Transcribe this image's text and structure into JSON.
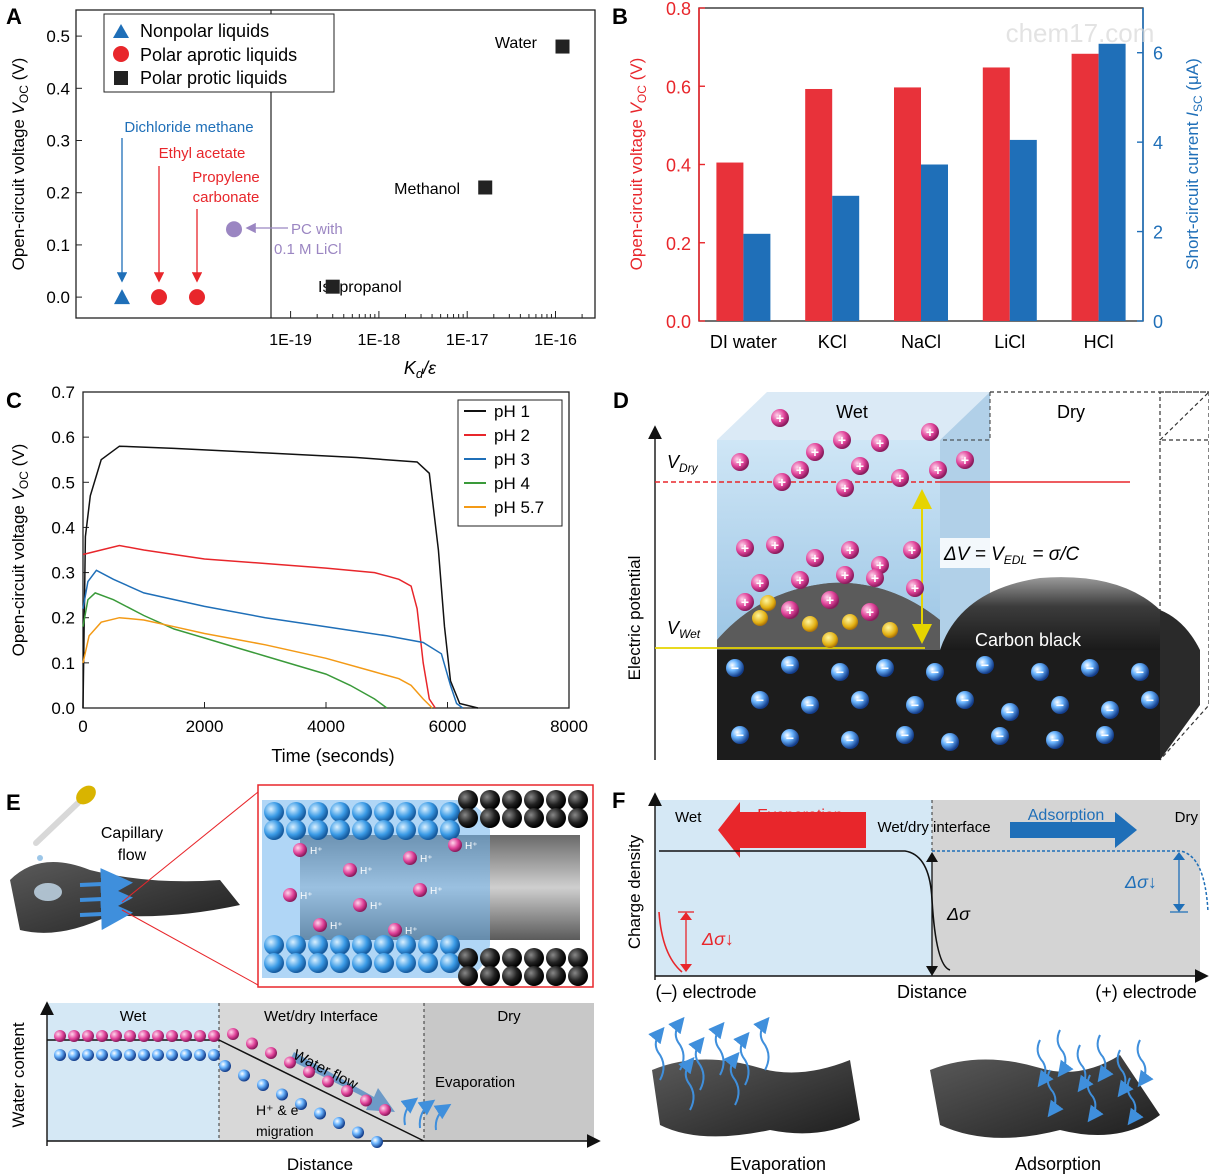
{
  "watermark": "chem17.com",
  "panels": {
    "A": {
      "label": "A",
      "ylabel": "Open-circuit voltage V_OC (V)",
      "ylabel_main": "Open-circuit voltage ",
      "ylabel_v": "V",
      "ylabel_sub": "OC",
      "ylabel_unit": " (V)",
      "xlabel_k": "K",
      "xlabel_sub": "d",
      "xlabel_rest": "/ε",
      "yticks": [
        "0.0",
        "0.1",
        "0.2",
        "0.3",
        "0.4",
        "0.5"
      ],
      "xticks": [
        "1E-19",
        "1E-18",
        "1E-17",
        "1E-16"
      ],
      "legend": [
        "Nonpolar liquids",
        "Polar aprotic liquids",
        "Polar protic liquids"
      ],
      "annotations": {
        "dcm": "Dichloride methane",
        "ea": "Ethyl acetate",
        "pc1": "Propylene",
        "pc2": "carbonate",
        "pcl1": "PC with",
        "pcl2": "0.1 M LiCl",
        "water": "Water",
        "methanol": "Methanol",
        "isopropanol": "Isopropanol"
      }
    },
    "B": {
      "label": "B",
      "ylabel_left_main": "Open-circuit voltage ",
      "ylabel_left_v": "V",
      "ylabel_left_sub": "OC",
      "ylabel_left_unit": " (V)",
      "ylabel_right_main": "Short-circuit current ",
      "ylabel_right_i": "I",
      "ylabel_right_sub": "SC",
      "ylabel_right_unit": " (μA)",
      "yticks_left": [
        "0.0",
        "0.2",
        "0.4",
        "0.6",
        "0.8"
      ],
      "yticks_right": [
        "0",
        "2",
        "4",
        "6"
      ]
    },
    "C": {
      "label": "C",
      "ylabel_main": "Open-circuit voltage ",
      "ylabel_v": "V",
      "ylabel_sub": "OC",
      "ylabel_unit": " (V)",
      "xlabel": "Time (seconds)",
      "yticks": [
        "0.0",
        "0.1",
        "0.2",
        "0.3",
        "0.4",
        "0.5",
        "0.6",
        "0.7"
      ],
      "xticks": [
        "0",
        "2000",
        "4000",
        "6000",
        "8000"
      ]
    },
    "D": {
      "label": "D",
      "wet": "Wet",
      "dry": "Dry",
      "vdry": "V",
      "vdry_sub": "Dry",
      "vwet": "V",
      "vwet_sub": "Wet",
      "ylabel": "Electric potential",
      "eq_a": "ΔV = V",
      "eq_sub": "EDL",
      "eq_b": " = σ/C",
      "carbon": "Carbon black"
    },
    "E": {
      "label": "E",
      "capillary1": "Capillary",
      "capillary2": "flow",
      "wet": "Wet",
      "interface": "Wet/dry Interface",
      "dry": "Dry",
      "ylabel": "Water content",
      "xlabel": "Distance",
      "waterflow": "Water flow",
      "evaporation": "Evaporation",
      "migration1": "H⁺ & e⁻",
      "migration2": "migration",
      "ion": "H⁺"
    },
    "F": {
      "label": "F",
      "wet": "Wet",
      "dry": "Dry",
      "evaporation": "Evaporation",
      "adsorption": "Adsorption",
      "interface": "Wet/dry interface",
      "ylabel": "Charge density",
      "dsigma": "Δσ",
      "dsigma_down": "Δσ↓",
      "neg_electrode": "(–) electrode",
      "distance": "Distance",
      "pos_electrode": "(+) electrode",
      "bottom_left": "Evaporation",
      "bottom_right": "Adsorption"
    }
  },
  "chart_data": [
    {
      "type": "scatter",
      "panel": "A",
      "xlabel": "Kd/ε",
      "ylabel": "Open-circuit voltage VOC (V)",
      "xscale": "log",
      "ylim": [
        -0.04,
        0.55
      ],
      "series": [
        {
          "name": "Nonpolar liquids",
          "color": "#1f6fb8",
          "marker": "triangle",
          "points": [
            {
              "label": "Dichloride methane",
              "y": 0.0
            }
          ]
        },
        {
          "name": "Polar aprotic liquids",
          "color": "#e8262b",
          "marker": "circle",
          "points": [
            {
              "label": "Ethyl acetate",
              "y": 0.0
            },
            {
              "label": "Propylene carbonate",
              "y": 0.0
            }
          ]
        },
        {
          "name": "PC with 0.1 M LiCl",
          "color": "#9b86c2",
          "marker": "circle",
          "points": [
            {
              "label": "PC with 0.1 M LiCl",
              "y": 0.13
            }
          ]
        },
        {
          "name": "Polar protic liquids",
          "color": "#222222",
          "marker": "square",
          "points": [
            {
              "label": "Isopropanol",
              "x": 3e-19,
              "y": 0.02
            },
            {
              "label": "Methanol",
              "x": 1.6e-17,
              "y": 0.21
            },
            {
              "label": "Water",
              "x": 1.2e-16,
              "y": 0.48
            }
          ]
        }
      ]
    },
    {
      "type": "bar",
      "panel": "B",
      "categories": [
        "DI water",
        "KCl",
        "NaCl",
        "LiCl",
        "HCl"
      ],
      "series": [
        {
          "name": "VOC (V)",
          "axis": "left",
          "color": "#e8323a",
          "values": [
            0.405,
            0.593,
            0.597,
            0.648,
            0.683
          ]
        },
        {
          "name": "ISC (μA)",
          "axis": "right",
          "color": "#1f6fb8",
          "values": [
            1.95,
            2.8,
            3.5,
            4.05,
            6.2
          ]
        }
      ],
      "ylim_left": [
        0,
        0.8
      ],
      "ylim_right": [
        0,
        7
      ]
    },
    {
      "type": "line",
      "panel": "C",
      "xlabel": "Time (seconds)",
      "ylabel": "Open-circuit voltage VOC (V)",
      "xlim": [
        0,
        8000
      ],
      "ylim": [
        0,
        0.7
      ],
      "series": [
        {
          "name": "pH 1",
          "color": "#111111",
          "points": [
            [
              0,
              0.0
            ],
            [
              40,
              0.38
            ],
            [
              120,
              0.47
            ],
            [
              300,
              0.55
            ],
            [
              600,
              0.58
            ],
            [
              1500,
              0.575
            ],
            [
              3000,
              0.565
            ],
            [
              4500,
              0.555
            ],
            [
              5500,
              0.545
            ],
            [
              5700,
              0.52
            ],
            [
              5850,
              0.35
            ],
            [
              5950,
              0.18
            ],
            [
              6050,
              0.06
            ],
            [
              6200,
              0.01
            ],
            [
              6500,
              0.0
            ]
          ]
        },
        {
          "name": "pH 2",
          "color": "#e8262b",
          "points": [
            [
              0,
              0.34
            ],
            [
              300,
              0.35
            ],
            [
              600,
              0.36
            ],
            [
              1000,
              0.35
            ],
            [
              1500,
              0.34
            ],
            [
              2000,
              0.33
            ],
            [
              3000,
              0.32
            ],
            [
              4000,
              0.31
            ],
            [
              4800,
              0.3
            ],
            [
              5200,
              0.285
            ],
            [
              5400,
              0.27
            ],
            [
              5500,
              0.22
            ],
            [
              5600,
              0.1
            ],
            [
              5700,
              0.02
            ],
            [
              5800,
              0.0
            ]
          ]
        },
        {
          "name": "pH 3",
          "color": "#1f6fb8",
          "points": [
            [
              0,
              0.22
            ],
            [
              80,
              0.28
            ],
            [
              220,
              0.305
            ],
            [
              500,
              0.285
            ],
            [
              1000,
              0.255
            ],
            [
              2000,
              0.225
            ],
            [
              3000,
              0.2
            ],
            [
              4000,
              0.18
            ],
            [
              5000,
              0.16
            ],
            [
              5600,
              0.145
            ],
            [
              5900,
              0.12
            ],
            [
              6050,
              0.05
            ],
            [
              6150,
              0.01
            ],
            [
              6250,
              0.0
            ]
          ]
        },
        {
          "name": "pH 4",
          "color": "#3a9a3a",
          "points": [
            [
              0,
              0.18
            ],
            [
              80,
              0.24
            ],
            [
              200,
              0.255
            ],
            [
              500,
              0.24
            ],
            [
              1000,
              0.205
            ],
            [
              1500,
              0.175
            ],
            [
              2000,
              0.155
            ],
            [
              2500,
              0.135
            ],
            [
              3000,
              0.115
            ],
            [
              3500,
              0.095
            ],
            [
              4000,
              0.075
            ],
            [
              4400,
              0.05
            ],
            [
              4800,
              0.02
            ],
            [
              5000,
              0.0
            ]
          ]
        },
        {
          "name": "pH 5.7",
          "color": "#f39a16",
          "points": [
            [
              0,
              0.1
            ],
            [
              100,
              0.16
            ],
            [
              300,
              0.19
            ],
            [
              600,
              0.2
            ],
            [
              1000,
              0.195
            ],
            [
              1500,
              0.18
            ],
            [
              2000,
              0.165
            ],
            [
              3000,
              0.14
            ],
            [
              4000,
              0.11
            ],
            [
              4800,
              0.08
            ],
            [
              5200,
              0.065
            ],
            [
              5400,
              0.05
            ],
            [
              5600,
              0.02
            ],
            [
              5750,
              0.0
            ]
          ]
        }
      ]
    }
  ]
}
